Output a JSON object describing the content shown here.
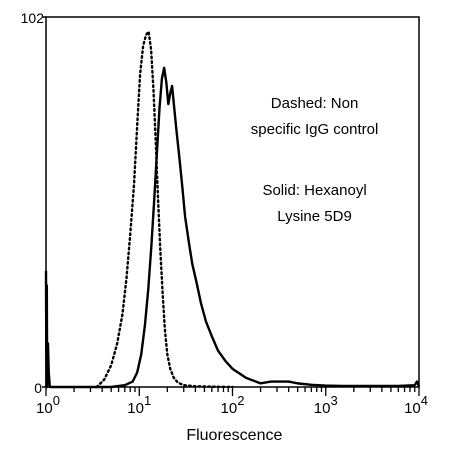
{
  "chart_data": {
    "type": "line",
    "title": "",
    "xlabel": "Fluorescence",
    "ylabel": "",
    "x_scale": "log",
    "xlim": [
      1,
      10000
    ],
    "ylim": [
      0,
      102
    ],
    "x_ticks": [
      {
        "value": 1,
        "base": "10",
        "exp": "0"
      },
      {
        "value": 10,
        "base": "10",
        "exp": "1"
      },
      {
        "value": 100,
        "base": "10",
        "exp": "2"
      },
      {
        "value": 1000,
        "base": "10",
        "exp": "3"
      },
      {
        "value": 10000,
        "base": "10",
        "exp": "4"
      }
    ],
    "y_ticks": [
      {
        "value": 0,
        "label": "0"
      },
      {
        "value": 102,
        "label": "102"
      }
    ],
    "grid": false,
    "legend": "none",
    "annotations": [
      {
        "lines": [
          "Dashed: Non",
          "specific IgG control"
        ]
      },
      {
        "lines": [
          "Solid: Hexanoyl",
          "Lysine 5D9"
        ]
      }
    ],
    "series": [
      {
        "style": "dashed",
        "x": [
          3.5,
          4.2,
          5.0,
          5.8,
          6.6,
          7.3,
          8.0,
          8.8,
          9.5,
          10.2,
          11.0,
          11.8,
          12.6,
          13.4,
          14.2,
          15.0,
          15.9,
          16.8,
          17.8,
          18.8,
          20.0,
          21.5,
          23.5,
          26.0,
          30.0,
          40.0,
          60.0,
          100.0
        ],
        "y": [
          0,
          2,
          6,
          12,
          20,
          30,
          42,
          56,
          72,
          86,
          94,
          97,
          98,
          93,
          82,
          68,
          52,
          38,
          26,
          16,
          9,
          5,
          2.5,
          1.2,
          0.5,
          0.2,
          0.1,
          0
        ]
      },
      {
        "style": "solid",
        "x": [
          1.0,
          1.01,
          1.02,
          1.03,
          1.05,
          1.07,
          1.1,
          2.0,
          5.0,
          7.0,
          8.5,
          9.5,
          10.5,
          11.5,
          12.5,
          13.5,
          14.5,
          15.5,
          16.5,
          17.5,
          18.5,
          19.5,
          20.5,
          21.5,
          22.5,
          23.5,
          25.0,
          27.0,
          29.0,
          31.0,
          34.0,
          37.0,
          41.0,
          46.0,
          52.0,
          60.0,
          70.0,
          85.0,
          100.0,
          140.0,
          200.0,
          260.0,
          320.0,
          400.0,
          500.0,
          700.0,
          1000.0,
          1500.0,
          3000.0,
          6000.0,
          9000.0,
          9500.0,
          10000.0
        ],
        "y": [
          32,
          0,
          28,
          0,
          12,
          4,
          0,
          0,
          0,
          0.5,
          1.5,
          4,
          9,
          17,
          27,
          39,
          52,
          65,
          77,
          85,
          88,
          84,
          78,
          81,
          83,
          78,
          71,
          63,
          55,
          47,
          40,
          34,
          29,
          23,
          18,
          14,
          10,
          7,
          5,
          2.5,
          1,
          1.5,
          1.5,
          1.5,
          1,
          0.6,
          0.4,
          0.3,
          0.3,
          0.3,
          0.5,
          1.5,
          0
        ]
      }
    ]
  }
}
